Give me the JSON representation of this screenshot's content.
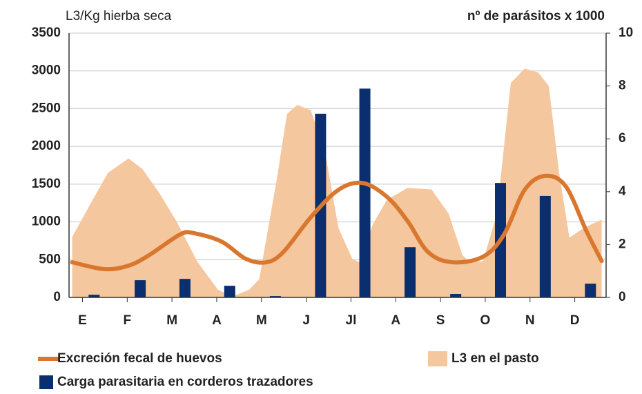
{
  "chart_data": {
    "type": "combo",
    "y_label": "L3/Kg hierba seca",
    "y2_label": "nº de parásitos x 1000",
    "xlim": [
      -0.3,
      11.7
    ],
    "xticks": [
      {
        "value": 0,
        "label": "E"
      },
      {
        "value": 1,
        "label": "F"
      },
      {
        "value": 2,
        "label": "M"
      },
      {
        "value": 3,
        "label": "A"
      },
      {
        "value": 4,
        "label": "M"
      },
      {
        "value": 5,
        "label": "J"
      },
      {
        "value": 6,
        "label": "Jl"
      },
      {
        "value": 7,
        "label": "A"
      },
      {
        "value": 8,
        "label": "S"
      },
      {
        "value": 9,
        "label": "O"
      },
      {
        "value": 10,
        "label": "N"
      },
      {
        "value": 11,
        "label": "D"
      }
    ],
    "ylim": [
      0,
      3500
    ],
    "yticks": [
      0,
      500,
      1000,
      1500,
      2000,
      2500,
      3000,
      3500
    ],
    "y2lim": [
      0,
      10
    ],
    "y2ticks": [
      0,
      2,
      4,
      6,
      8,
      10
    ],
    "grid": true,
    "series": [
      {
        "name": "L3 en el pasto",
        "kind": "area",
        "color": "#f5c79e",
        "x": [
          -0.23,
          0.18,
          0.57,
          1.03,
          1.34,
          1.72,
          2.1,
          2.57,
          3.03,
          3.34,
          3.72,
          3.95,
          4.34,
          4.57,
          4.8,
          5.1,
          5.42,
          5.72,
          6.03,
          6.18,
          6.49,
          6.8,
          7.26,
          7.8,
          8.18,
          8.49,
          8.65,
          8.95,
          9.26,
          9.57,
          9.88,
          10.18,
          10.42,
          10.65,
          10.88,
          11.2,
          11.6
        ],
        "values": [
          800,
          1240,
          1650,
          1840,
          1700,
          1380,
          1010,
          470,
          100,
          10,
          100,
          240,
          1560,
          2430,
          2550,
          2480,
          1930,
          920,
          510,
          470,
          970,
          1290,
          1450,
          1430,
          1110,
          560,
          470,
          480,
          1110,
          2840,
          3030,
          2980,
          2800,
          1650,
          790,
          920,
          1030
        ]
      },
      {
        "name": "Excreción fecal de huevos",
        "kind": "line",
        "color": "#d9772f",
        "axis": "y2",
        "x": [
          -0.23,
          0.49,
          1.03,
          1.49,
          2.18,
          2.49,
          3.11,
          3.65,
          4.11,
          4.49,
          5.1,
          5.72,
          6.26,
          6.8,
          7.26,
          7.72,
          8.26,
          8.95,
          9.42,
          9.88,
          10.34,
          10.8,
          11.26,
          11.6
        ],
        "values": [
          1.33,
          1.07,
          1.2,
          1.6,
          2.38,
          2.43,
          2.11,
          1.46,
          1.33,
          1.72,
          3.03,
          4.07,
          4.33,
          3.81,
          2.9,
          1.72,
          1.33,
          1.54,
          2.38,
          4.07,
          4.6,
          4.2,
          2.51,
          1.38
        ]
      },
      {
        "name": "Carga parasitaria en corderos trazadores",
        "kind": "bar",
        "color": "#0a2e6e",
        "axis": "y2",
        "x": [
          0.26,
          1.29,
          2.29,
          3.29,
          4.31,
          5.32,
          6.31,
          7.32,
          8.34,
          9.34,
          10.34,
          11.35
        ],
        "values": [
          0.1,
          0.65,
          0.7,
          0.44,
          0.05,
          6.95,
          7.9,
          1.9,
          0.13,
          4.33,
          3.84,
          0.52
        ]
      }
    ]
  }
}
